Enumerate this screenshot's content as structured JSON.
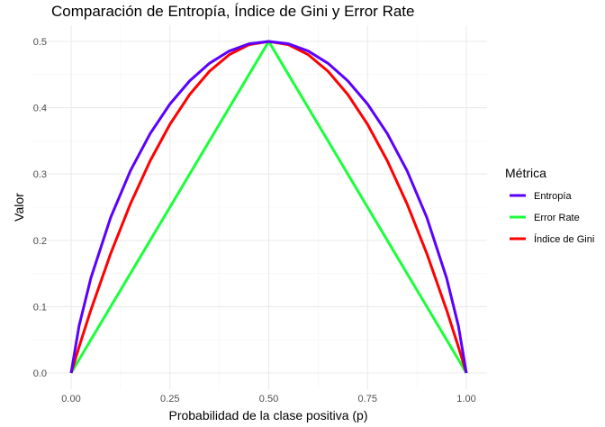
{
  "chart_data": {
    "type": "line",
    "title": "Comparación de Entropía, Índice de Gini y Error Rate",
    "xlabel": "Probabilidad de la clase positiva (p)",
    "ylabel": "Valor",
    "xlim": [
      0,
      1
    ],
    "ylim": [
      0,
      0.5
    ],
    "x_ticks": [
      0,
      0.25,
      0.5,
      0.75,
      1
    ],
    "x_tick_labels": [
      "0.00",
      "0.25",
      "0.50",
      "0.75",
      "1.00"
    ],
    "y_ticks": [
      0,
      0.1,
      0.2,
      0.3,
      0.4,
      0.5
    ],
    "y_tick_labels": [
      "0.0",
      "0.1",
      "0.2",
      "0.3",
      "0.4",
      "0.5"
    ],
    "grid": true,
    "legend": {
      "title": "Métrica",
      "position": "right"
    },
    "x": [
      0,
      0.02,
      0.05,
      0.1,
      0.15,
      0.2,
      0.25,
      0.3,
      0.35,
      0.4,
      0.45,
      0.5,
      0.55,
      0.6,
      0.65,
      0.7,
      0.75,
      0.8,
      0.85,
      0.9,
      0.95,
      0.98,
      1
    ],
    "series": [
      {
        "name": "Entropía",
        "color": "#5b00ff",
        "values": [
          0,
          0.0707,
          0.1432,
          0.2345,
          0.3049,
          0.361,
          0.4056,
          0.4406,
          0.467,
          0.4855,
          0.4964,
          0.5,
          0.4964,
          0.4855,
          0.467,
          0.4406,
          0.4056,
          0.361,
          0.3049,
          0.2345,
          0.1432,
          0.0707,
          0
        ]
      },
      {
        "name": "Error Rate",
        "color": "#1aff3a",
        "values": [
          0,
          0.02,
          0.05,
          0.1,
          0.15,
          0.2,
          0.25,
          0.3,
          0.35,
          0.4,
          0.45,
          0.5,
          0.45,
          0.4,
          0.35,
          0.3,
          0.25,
          0.2,
          0.15,
          0.1,
          0.05,
          0.02,
          0
        ]
      },
      {
        "name": "Índice de Gini",
        "color": "#ff0000",
        "values": [
          0,
          0.0392,
          0.095,
          0.18,
          0.255,
          0.32,
          0.375,
          0.42,
          0.455,
          0.48,
          0.495,
          0.5,
          0.495,
          0.48,
          0.455,
          0.42,
          0.375,
          0.32,
          0.255,
          0.18,
          0.095,
          0.0392,
          0
        ]
      }
    ]
  }
}
